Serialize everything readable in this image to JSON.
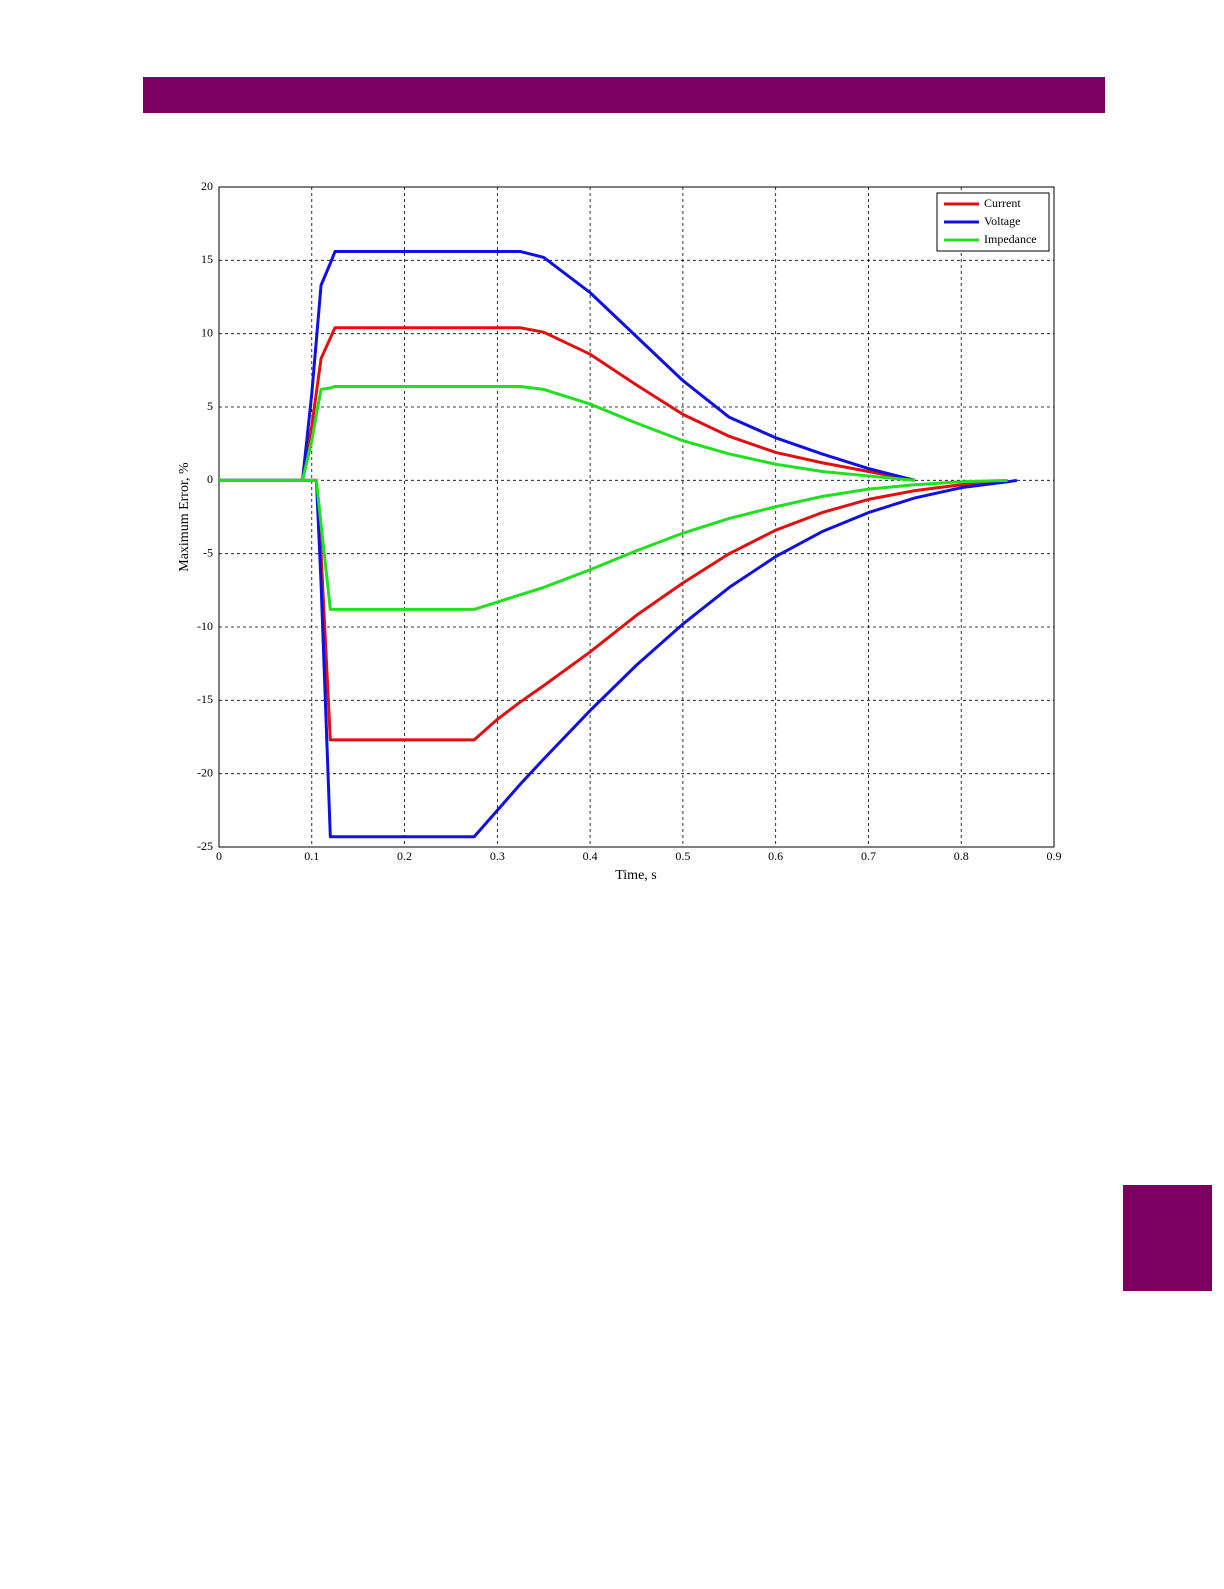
{
  "chart_data": {
    "type": "line",
    "xlabel": "Time, s",
    "ylabel": "Maximum Error, %",
    "x": [
      0,
      0.09,
      0.1,
      0.105,
      0.11,
      0.12,
      0.125,
      0.2,
      0.275,
      0.3,
      0.325,
      0.35,
      0.4,
      0.45,
      0.5,
      0.55,
      0.6,
      0.65,
      0.7,
      0.75,
      0.8,
      0.85,
      0.86
    ],
    "series": [
      {
        "name": "Current",
        "color": "#e01010",
        "values": [
          0,
          0,
          3.7,
          6,
          8.3,
          9.7,
          10.4,
          10.4,
          10.4,
          10.4,
          10.4,
          10.1,
          8.6,
          6.5,
          4.5,
          3.0,
          1.9,
          1.2,
          0.6,
          0,
          null,
          null,
          null
        ],
        "lower": [
          0,
          0,
          0,
          0,
          -5,
          -17.7,
          -17.7,
          -17.7,
          -17.7,
          -16.3,
          -15.1,
          -14,
          -11.7,
          -9.2,
          -7.0,
          -5.0,
          -3.4,
          -2.2,
          -1.3,
          -0.7,
          -0.3,
          0,
          null
        ]
      },
      {
        "name": "Voltage",
        "color": "#1010e0",
        "values": [
          0,
          0,
          5.9,
          9.6,
          13.3,
          14.8,
          15.6,
          15.6,
          15.6,
          15.6,
          15.6,
          15.2,
          12.8,
          9.8,
          6.8,
          4.3,
          2.9,
          1.8,
          0.8,
          0,
          null,
          null,
          null
        ],
        "lower": [
          0,
          0,
          0,
          0,
          -7,
          -24.3,
          -24.3,
          -24.3,
          -24.3,
          -22.5,
          -20.7,
          -19,
          -15.7,
          -12.6,
          -9.8,
          -7.3,
          -5.2,
          -3.5,
          -2.2,
          -1.2,
          -0.5,
          -0.1,
          0
        ]
      },
      {
        "name": "Impedance",
        "color": "#20e020",
        "values": [
          0,
          0,
          2.7,
          4.5,
          6.2,
          6.3,
          6.4,
          6.4,
          6.4,
          6.4,
          6.4,
          6.2,
          5.2,
          3.9,
          2.7,
          1.8,
          1.1,
          0.6,
          0.3,
          0,
          null,
          null,
          null
        ],
        "lower": [
          0,
          0,
          0,
          0,
          -3,
          -8.8,
          -8.8,
          -8.8,
          -8.8,
          -8.3,
          -7.8,
          -7.3,
          -6.1,
          -4.8,
          -3.6,
          -2.6,
          -1.8,
          -1.1,
          -0.6,
          -0.3,
          -0.1,
          0,
          null
        ]
      }
    ],
    "xlim": [
      0,
      0.9
    ],
    "xticks": [
      0,
      0.1,
      0.2,
      0.3,
      0.4,
      0.5,
      0.6,
      0.7,
      0.8,
      0.9
    ],
    "ylim": [
      -25,
      20
    ],
    "yticks": [
      -25,
      -20,
      -15,
      -10,
      -5,
      0,
      5,
      10,
      15,
      20
    ],
    "grid": true,
    "legend": "upper right"
  }
}
